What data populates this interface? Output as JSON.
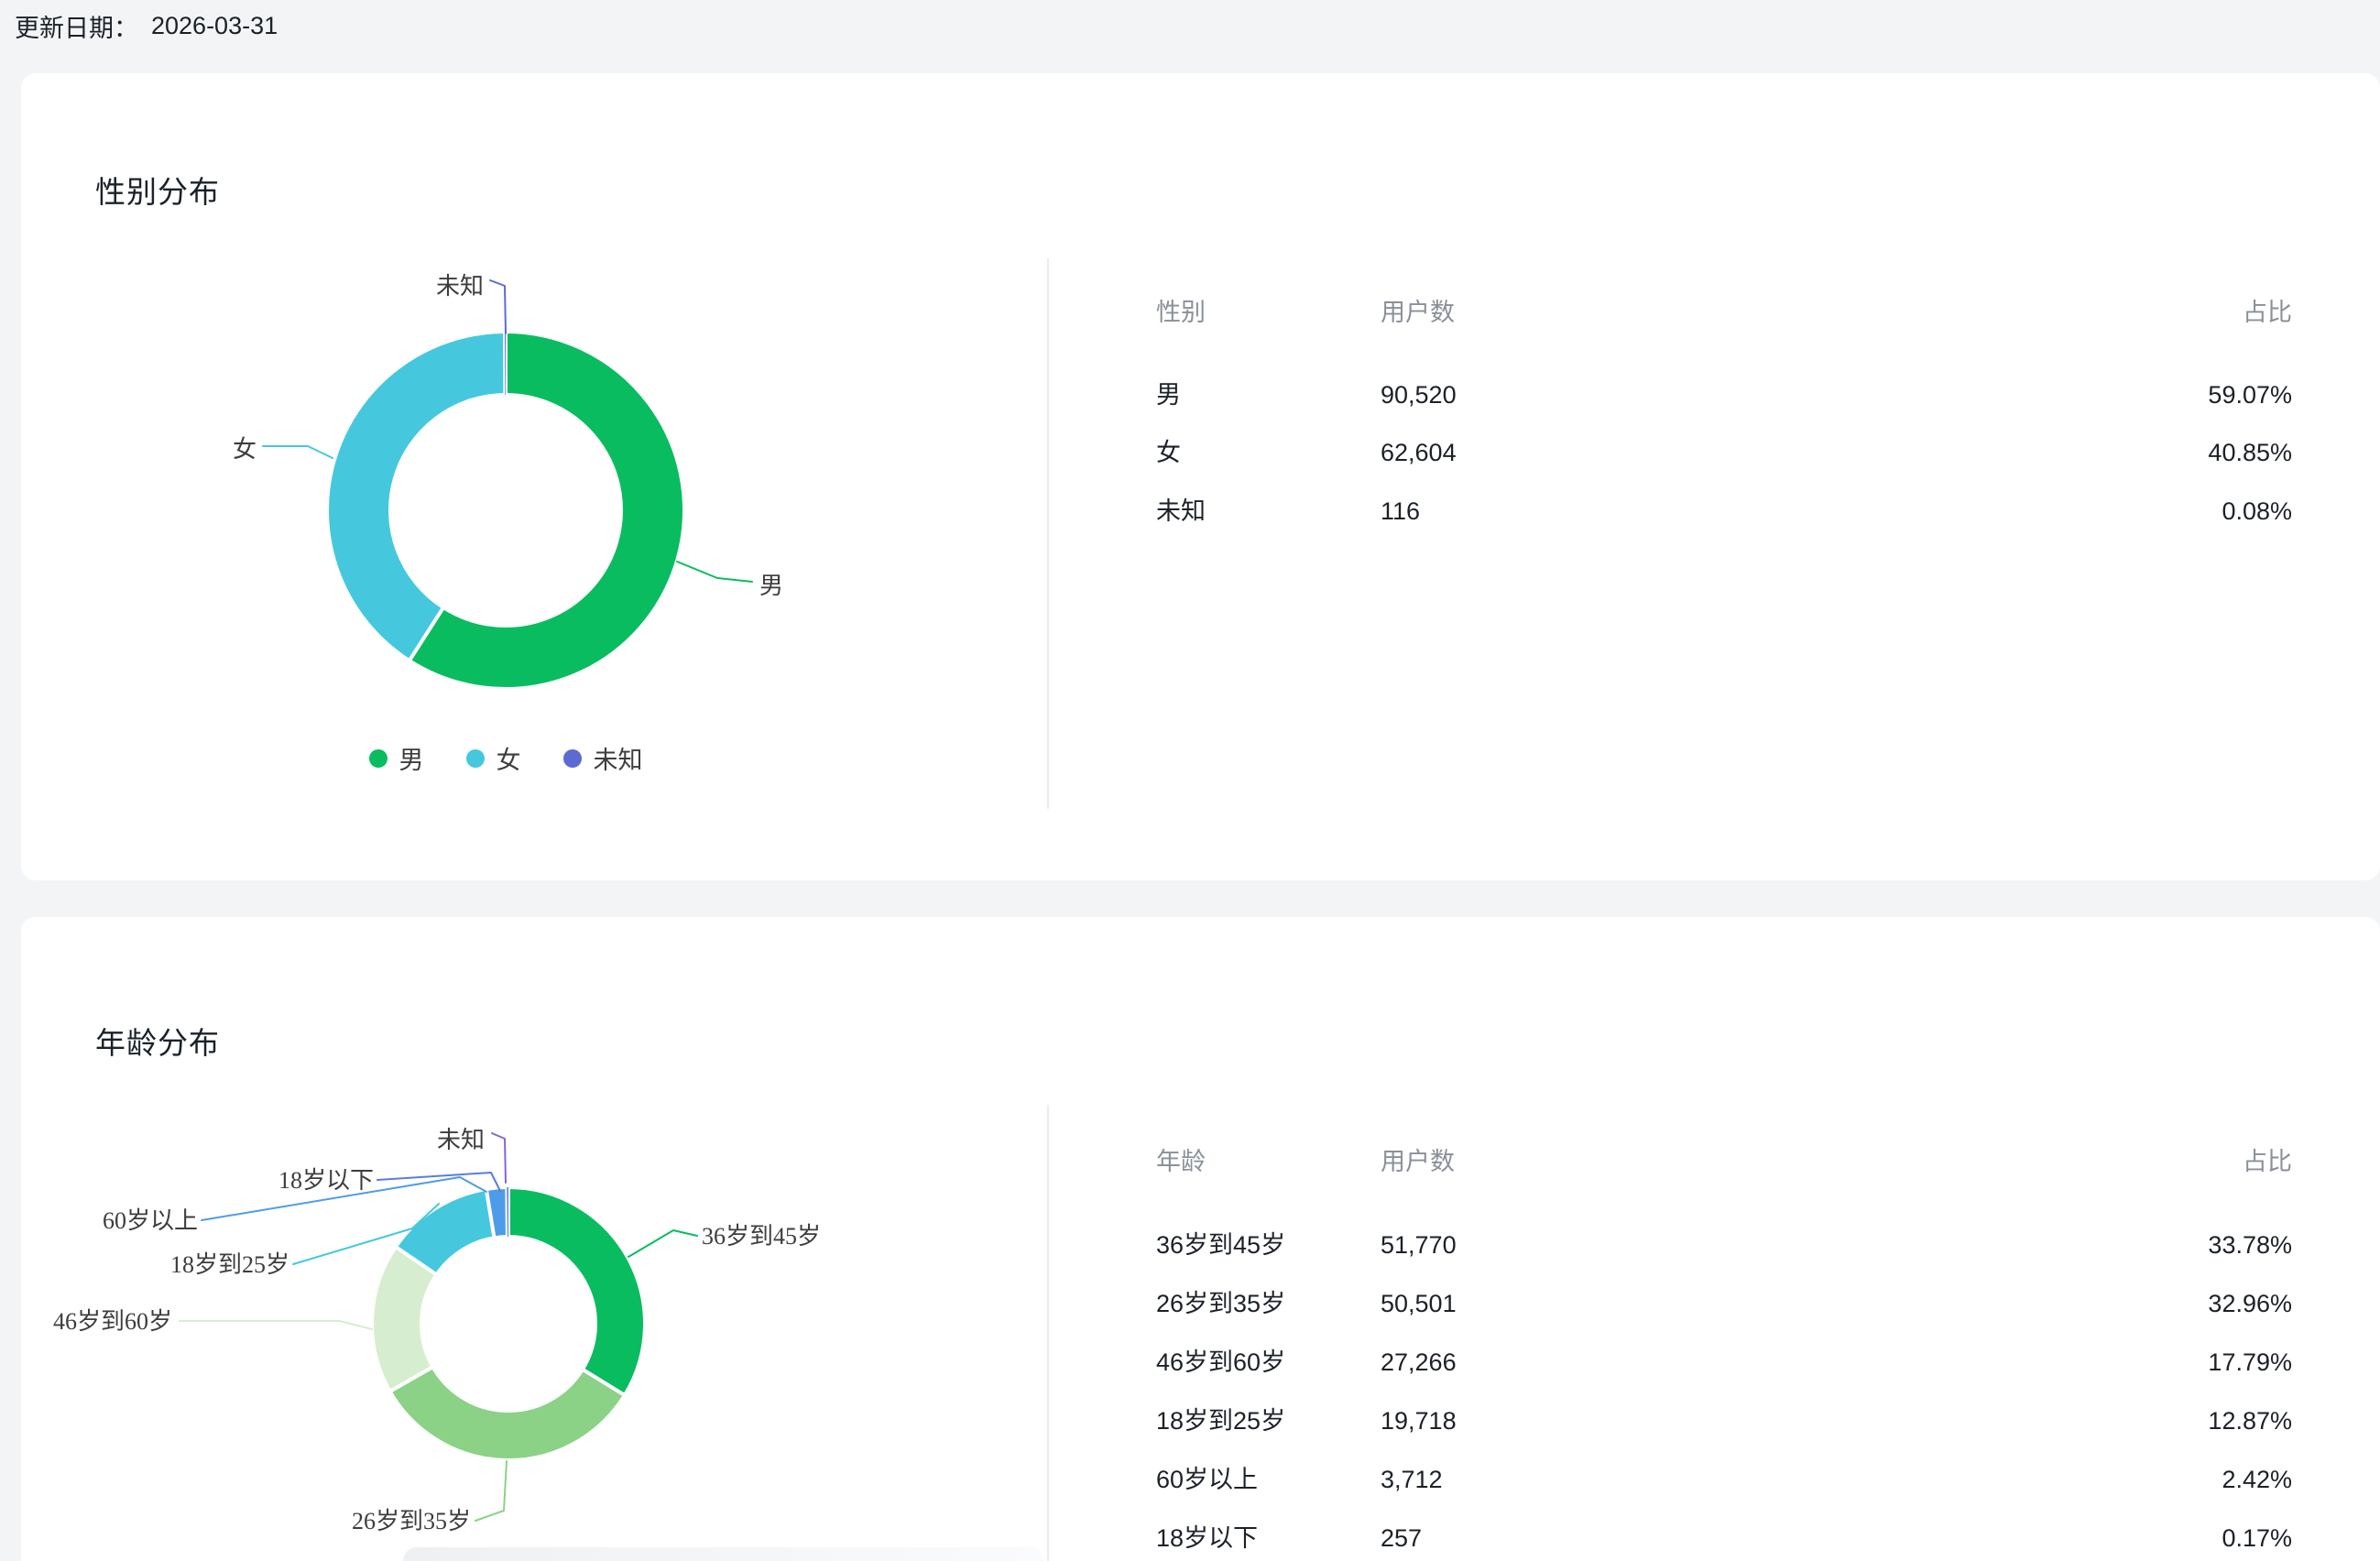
{
  "page": {
    "update_date_label": "更新日期：",
    "update_date": "2026-03-31",
    "background_color": "#f3f4f6"
  },
  "gender_section": {
    "title": "性别分布",
    "table": {
      "columns": [
        "性别",
        "用户数",
        "占比"
      ],
      "rows": [
        {
          "label": "男",
          "users": "90,520",
          "percent": "59.07%"
        },
        {
          "label": "女",
          "users": "62,604",
          "percent": "40.85%"
        },
        {
          "label": "未知",
          "users": "116",
          "percent": "0.08%"
        }
      ]
    },
    "legend": [
      {
        "label": "男",
        "color": "#0abc60"
      },
      {
        "label": "女",
        "color": "#45c8de"
      },
      {
        "label": "未知",
        "color": "#5c6bd3"
      }
    ]
  },
  "age_section": {
    "title": "年龄分布",
    "table": {
      "columns": [
        "年龄",
        "用户数",
        "占比"
      ],
      "rows": [
        {
          "label": "36岁到45岁",
          "users": "51,770",
          "percent": "33.78%"
        },
        {
          "label": "26岁到35岁",
          "users": "50,501",
          "percent": "32.96%"
        },
        {
          "label": "46岁到60岁",
          "users": "27,266",
          "percent": "17.79%"
        },
        {
          "label": "18岁到25岁",
          "users": "19,718",
          "percent": "12.87%"
        },
        {
          "label": "60岁以上",
          "users": "3,712",
          "percent": "2.42%"
        },
        {
          "label": "18岁以下",
          "users": "257",
          "percent": "0.17%"
        }
      ]
    }
  },
  "chart_data": [
    {
      "type": "pie",
      "title": "性别分布",
      "donut": true,
      "labels": [
        "男",
        "女",
        "未知"
      ],
      "values": [
        90520,
        62604,
        116
      ],
      "percents": [
        59.07,
        40.85,
        0.08
      ],
      "colors": [
        "#0abc60",
        "#45c8de",
        "#5c6bd3"
      ],
      "legend_position": "bottom"
    },
    {
      "type": "pie",
      "title": "年龄分布",
      "donut": true,
      "labels": [
        "36岁到45岁",
        "26岁到35岁",
        "46岁到60岁",
        "18岁到25岁",
        "60岁以上",
        "18岁以下",
        "未知"
      ],
      "values": [
        51770,
        50501,
        27266,
        19718,
        3712,
        257,
        16
      ],
      "percents": [
        33.78,
        32.96,
        17.79,
        12.87,
        2.42,
        0.17,
        0.01
      ],
      "colors": [
        "#0abc60",
        "#8bd287",
        "#d6eecf",
        "#45c8de",
        "#4e9ce9",
        "#5a7ce2",
        "#8a63d6"
      ],
      "legend_position": "none"
    }
  ]
}
